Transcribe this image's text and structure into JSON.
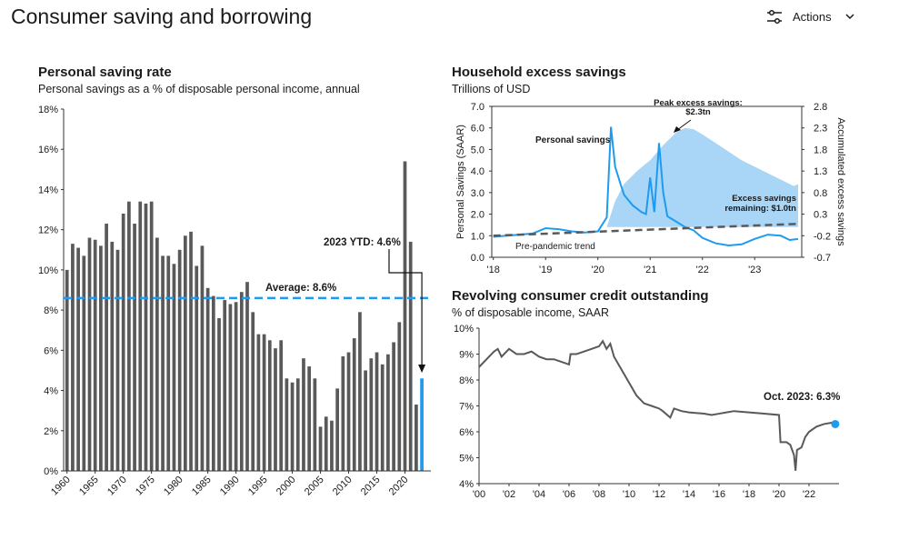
{
  "header": {
    "title": "Consumer saving and borrowing",
    "actions": "Actions"
  },
  "chart_data": [
    {
      "type": "bar",
      "title": "Personal saving rate",
      "subtitle": "Personal savings as a % of disposable personal income, annual",
      "x": [
        1960,
        1961,
        1962,
        1963,
        1964,
        1965,
        1966,
        1967,
        1968,
        1969,
        1970,
        1971,
        1972,
        1973,
        1974,
        1975,
        1976,
        1977,
        1978,
        1979,
        1980,
        1981,
        1982,
        1983,
        1984,
        1985,
        1986,
        1987,
        1988,
        1989,
        1990,
        1991,
        1992,
        1993,
        1994,
        1995,
        1996,
        1997,
        1998,
        1999,
        2000,
        2001,
        2002,
        2003,
        2004,
        2005,
        2006,
        2007,
        2008,
        2009,
        2010,
        2011,
        2012,
        2013,
        2014,
        2015,
        2016,
        2017,
        2018,
        2019,
        2020,
        2021,
        2022,
        2023
      ],
      "values": [
        10.0,
        11.3,
        11.1,
        10.7,
        11.6,
        11.5,
        11.2,
        12.3,
        11.4,
        11.0,
        12.8,
        13.4,
        12.3,
        13.4,
        13.3,
        13.4,
        11.6,
        10.7,
        10.7,
        10.3,
        11.0,
        11.7,
        11.9,
        10.2,
        11.2,
        9.1,
        8.7,
        7.6,
        8.5,
        8.3,
        8.4,
        8.9,
        9.4,
        7.9,
        6.8,
        6.8,
        6.5,
        6.1,
        6.5,
        4.6,
        4.4,
        4.6,
        5.6,
        5.2,
        4.6,
        2.2,
        2.7,
        2.5,
        4.1,
        5.7,
        5.9,
        6.6,
        7.9,
        5.0,
        5.6,
        5.9,
        5.3,
        5.8,
        6.4,
        7.4,
        15.4,
        11.4,
        3.3,
        4.6
      ],
      "color": "#595959",
      "last_color": "#1e9bf0",
      "xlim": [
        1959.4,
        2024.6
      ],
      "xticks": [
        1960,
        1965,
        1970,
        1975,
        1980,
        1985,
        1990,
        1995,
        2000,
        2005,
        2010,
        2015,
        2020
      ],
      "ylim": [
        0,
        18
      ],
      "yticks": [
        {
          "value": 0,
          "label": "0%"
        },
        {
          "value": 2,
          "label": "2%"
        },
        {
          "value": 4,
          "label": "4%"
        },
        {
          "value": 6,
          "label": "6%"
        },
        {
          "value": 8,
          "label": "8%"
        },
        {
          "value": 10,
          "label": "10%"
        },
        {
          "value": 12,
          "label": "12%"
        },
        {
          "value": 14,
          "label": "14%"
        },
        {
          "value": 16,
          "label": "16%"
        },
        {
          "value": 18,
          "label": "18%"
        }
      ],
      "reference_line": {
        "value": 8.6,
        "label": "Average: 8.6%",
        "color": "#1e9bf0"
      },
      "annotations": [
        {
          "text": "2023 YTD: 4.6%"
        }
      ]
    },
    {
      "type": "line",
      "title": "Household excess savings",
      "subtitle": "Trillions of USD",
      "ylabel": "Personal Savings (SAAR)",
      "y2label": "Accumulated excess savings",
      "xlim": [
        2017.97,
        2023.9
      ],
      "xticks": [
        {
          "value": 2018,
          "label": "'18"
        },
        {
          "value": 2019,
          "label": "'19"
        },
        {
          "value": 2020,
          "label": "'20"
        },
        {
          "value": 2021,
          "label": "'21"
        },
        {
          "value": 2022,
          "label": "'22"
        },
        {
          "value": 2023,
          "label": "'23"
        }
      ],
      "ylim": [
        0,
        7
      ],
      "yticks": [
        {
          "value": 0,
          "label": "0.0"
        },
        {
          "value": 1,
          "label": "1.0"
        },
        {
          "value": 2,
          "label": "2.0"
        },
        {
          "value": 3,
          "label": "3.0"
        },
        {
          "value": 4,
          "label": "4.0"
        },
        {
          "value": 5,
          "label": "5.0"
        },
        {
          "value": 6,
          "label": "6.0"
        },
        {
          "value": 7,
          "label": "7.0"
        }
      ],
      "y2lim": [
        -0.7,
        2.8
      ],
      "y2ticks": [
        -0.7,
        -0.2,
        0.3,
        0.8,
        1.3,
        1.8,
        2.3,
        2.8
      ],
      "series": [
        {
          "type": "area",
          "axis": "y2",
          "color": "#a9d5f6",
          "x": [
            2020.17,
            2020.25,
            2020.33,
            2020.5,
            2020.75,
            2021.0,
            2021.25,
            2021.5,
            2021.67,
            2021.83,
            2022.0,
            2022.25,
            2022.5,
            2022.75,
            2023.0,
            2023.25,
            2023.5,
            2023.75,
            2023.83
          ],
          "values": [
            0,
            0.3,
            0.6,
            1.0,
            1.3,
            1.55,
            1.9,
            2.2,
            2.3,
            2.27,
            2.15,
            1.95,
            1.75,
            1.55,
            1.4,
            1.25,
            1.1,
            0.95,
            1.0
          ]
        },
        {
          "name": "Personal savings",
          "color": "#1e9bf0",
          "x": [
            2018.0,
            2018.25,
            2018.5,
            2018.75,
            2019.0,
            2019.25,
            2019.5,
            2019.75,
            2020.0,
            2020.17,
            2020.25,
            2020.33,
            2020.42,
            2020.5,
            2020.67,
            2020.83,
            2020.92,
            2021.0,
            2021.08,
            2021.17,
            2021.25,
            2021.33,
            2021.5,
            2021.67,
            2021.83,
            2022.0,
            2022.25,
            2022.5,
            2022.75,
            2023.0,
            2023.25,
            2023.5,
            2023.67,
            2023.83
          ],
          "values": [
            0.95,
            1.0,
            1.05,
            1.1,
            1.35,
            1.3,
            1.2,
            1.15,
            1.2,
            1.85,
            6.05,
            4.2,
            3.5,
            2.9,
            2.4,
            2.1,
            2.0,
            3.7,
            2.1,
            5.3,
            3.0,
            1.9,
            1.65,
            1.4,
            1.25,
            0.9,
            0.65,
            0.55,
            0.6,
            0.85,
            1.05,
            1.0,
            0.8,
            0.85
          ]
        },
        {
          "name": "Pre-pandemic trend",
          "color": "#595959",
          "dashed": true,
          "x": [
            2018.0,
            2023.83
          ],
          "values": [
            1.0,
            1.55
          ]
        }
      ],
      "annotations": [
        {
          "lines": [
            "Peak excess savings:",
            "$2.3tn"
          ]
        },
        {
          "lines": [
            "Excess savings",
            "remaining: $1.0tn"
          ]
        }
      ]
    },
    {
      "type": "line",
      "title": "Revolving consumer credit outstanding",
      "subtitle": "% of disposable income, SAAR",
      "xlim": [
        2000,
        2024
      ],
      "xticks": [
        {
          "value": 2000,
          "label": "'00"
        },
        {
          "value": 2002,
          "label": "'02"
        },
        {
          "value": 2004,
          "label": "'04"
        },
        {
          "value": 2006,
          "label": "'06"
        },
        {
          "value": 2008,
          "label": "'08"
        },
        {
          "value": 2010,
          "label": "'10"
        },
        {
          "value": 2012,
          "label": "'12"
        },
        {
          "value": 2014,
          "label": "'14"
        },
        {
          "value": 2016,
          "label": "'16"
        },
        {
          "value": 2018,
          "label": "'18"
        },
        {
          "value": 2020,
          "label": "'20"
        },
        {
          "value": 2022,
          "label": "'22"
        }
      ],
      "ylim": [
        4,
        10
      ],
      "yticks": [
        {
          "value": 4,
          "label": "4%"
        },
        {
          "value": 5,
          "label": "5%"
        },
        {
          "value": 6,
          "label": "6%"
        },
        {
          "value": 7,
          "label": "7%"
        },
        {
          "value": 8,
          "label": "8%"
        },
        {
          "value": 9,
          "label": "9%"
        },
        {
          "value": 10,
          "label": "10%"
        }
      ],
      "series": [
        {
          "color": "#595959",
          "x": [
            2000.0,
            2000.5,
            2001.0,
            2001.25,
            2001.5,
            2002.0,
            2002.5,
            2003.0,
            2003.5,
            2004.0,
            2004.5,
            2005.0,
            2005.5,
            2006.0,
            2006.1,
            2006.5,
            2007.0,
            2007.5,
            2008.0,
            2008.25,
            2008.5,
            2008.75,
            2009.0,
            2009.5,
            2010.0,
            2010.5,
            2011.0,
            2011.5,
            2012.0,
            2012.25,
            2012.75,
            2013.0,
            2013.5,
            2014.0,
            2015.0,
            2015.5,
            2016.0,
            2016.5,
            2017.0,
            2018.0,
            2019.0,
            2020.0,
            2020.1,
            2020.5,
            2020.75,
            2021.0,
            2021.1,
            2021.2,
            2021.5,
            2021.75,
            2022.0,
            2022.5,
            2023.0,
            2023.5,
            2023.75
          ],
          "values": [
            8.5,
            8.8,
            9.1,
            9.2,
            8.9,
            9.2,
            9.0,
            9.0,
            9.1,
            8.9,
            8.8,
            8.8,
            8.7,
            8.6,
            9.0,
            9.0,
            9.1,
            9.2,
            9.3,
            9.5,
            9.2,
            9.4,
            8.9,
            8.4,
            7.9,
            7.4,
            7.1,
            7.0,
            6.9,
            6.8,
            6.55,
            6.9,
            6.8,
            6.75,
            6.7,
            6.65,
            6.7,
            6.75,
            6.8,
            6.75,
            6.7,
            6.65,
            5.6,
            5.6,
            5.5,
            5.1,
            4.5,
            5.3,
            5.4,
            5.8,
            6.0,
            6.2,
            6.3,
            6.35,
            6.3
          ]
        }
      ],
      "end_marker_color": "#1e9bf0",
      "annotations": [
        {
          "text": "Oct. 2023: 6.3%"
        }
      ]
    }
  ]
}
